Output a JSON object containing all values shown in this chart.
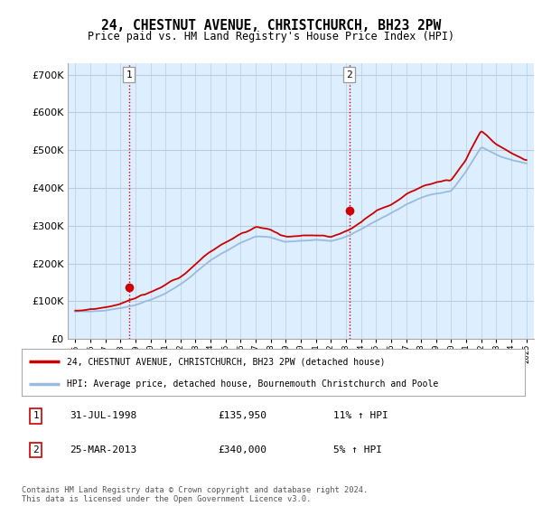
{
  "title": "24, CHESTNUT AVENUE, CHRISTCHURCH, BH23 2PW",
  "subtitle": "Price paid vs. HM Land Registry's House Price Index (HPI)",
  "legend_line1": "24, CHESTNUT AVENUE, CHRISTCHURCH, BH23 2PW (detached house)",
  "legend_line2": "HPI: Average price, detached house, Bournemouth Christchurch and Poole",
  "transaction1_date": "31-JUL-1998",
  "transaction1_price": "£135,950",
  "transaction1_hpi": "11% ↑ HPI",
  "transaction2_date": "25-MAR-2013",
  "transaction2_price": "£340,000",
  "transaction2_hpi": "5% ↑ HPI",
  "footer": "Contains HM Land Registry data © Crown copyright and database right 2024.\nThis data is licensed under the Open Government Licence v3.0.",
  "red_color": "#cc0000",
  "blue_color": "#99bbdd",
  "plot_bg_color": "#ddeeff",
  "background_color": "#ffffff",
  "grid_color": "#bbccdd",
  "vline1_year": 1998.58,
  "vline2_year": 2013.23,
  "transaction1_year": 1998.58,
  "transaction2_year": 2013.23,
  "transaction1_value": 135950,
  "transaction2_value": 340000,
  "ylim_max": 730000,
  "xlim_min": 1994.5,
  "xlim_max": 2025.5,
  "hpi_base": [
    72000,
    74000,
    78000,
    83000,
    92000,
    105000,
    122000,
    145000,
    175000,
    208000,
    232000,
    255000,
    270000,
    268000,
    255000,
    258000,
    260000,
    258000,
    270000,
    290000,
    315000,
    335000,
    358000,
    375000,
    385000,
    392000,
    445000,
    510000,
    490000,
    475000,
    465000
  ],
  "red_base": [
    75000,
    77000,
    82000,
    90000,
    100000,
    118000,
    137000,
    160000,
    192000,
    225000,
    250000,
    272000,
    290000,
    280000,
    263000,
    268000,
    270000,
    265000,
    280000,
    305000,
    335000,
    355000,
    382000,
    400000,
    410000,
    415000,
    470000,
    545000,
    510000,
    488000,
    472000
  ],
  "years_base": [
    1995,
    1996,
    1997,
    1998,
    1999,
    2000,
    2001,
    2002,
    2003,
    2004,
    2005,
    2006,
    2007,
    2008,
    2009,
    2010,
    2011,
    2012,
    2013,
    2014,
    2015,
    2016,
    2017,
    2018,
    2019,
    2020,
    2021,
    2022,
    2023,
    2024,
    2025
  ]
}
